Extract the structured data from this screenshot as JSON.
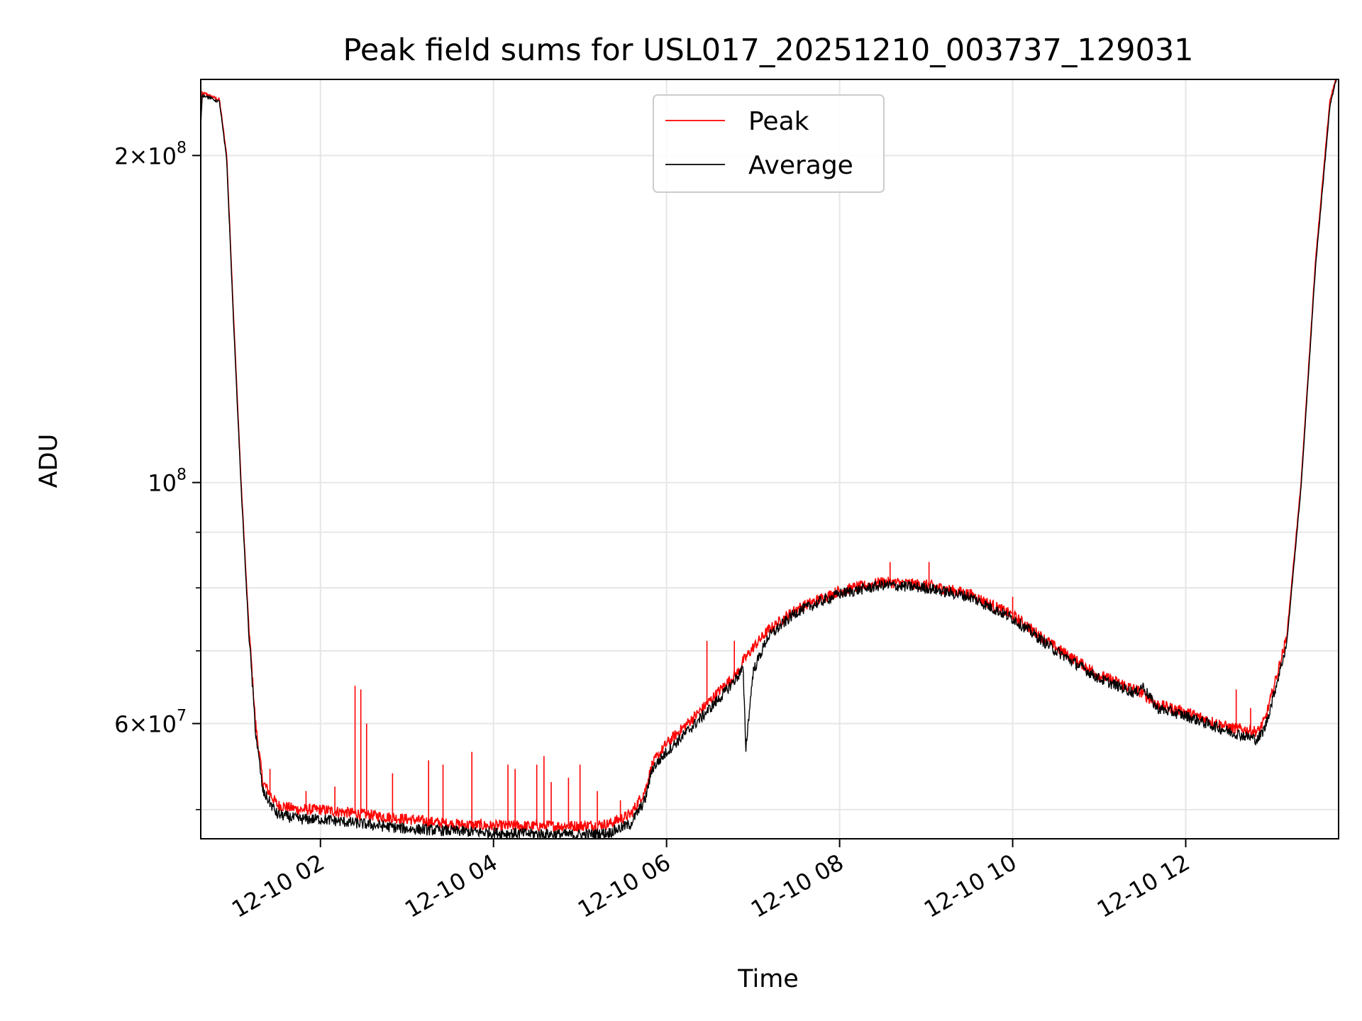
{
  "chart_data": {
    "type": "line",
    "title": "Peak field sums for USL017_20251210_003737_129031",
    "xlabel": "Time",
    "ylabel": "ADU",
    "x_ticks": [
      "12-10 02",
      "12-10 04",
      "12-10 06",
      "12-10 08",
      "12-10 10",
      "12-10 12"
    ],
    "x_range": [
      "2025-12-10 00:37",
      "2025-12-10 13:46"
    ],
    "y_scale": "log",
    "ylim": [
      47000000,
      235000000
    ],
    "y_ticks": [
      {
        "value": 60000000,
        "label_mantissa": "6",
        "label_base": "10",
        "label_exp": "7"
      },
      {
        "value": 100000000,
        "label_mantissa": "",
        "label_base": "10",
        "label_exp": "8"
      },
      {
        "value": 200000000,
        "label_mantissa": "2",
        "label_base": "10",
        "label_exp": "8"
      }
    ],
    "y_minor_ticks": [
      50000000,
      70000000,
      80000000,
      90000000
    ],
    "grid": true,
    "legend_position": "top-center",
    "series": [
      {
        "name": "Peak",
        "color": "#ff0000",
        "x": [
          "00:37",
          "00:38",
          "00:40",
          "00:50",
          "00:55",
          "01:00",
          "01:05",
          "01:10",
          "01:15",
          "01:20",
          "01:30",
          "01:45",
          "02:00",
          "02:30",
          "03:00",
          "03:30",
          "04:00",
          "04:30",
          "05:00",
          "05:20",
          "05:35",
          "05:45",
          "05:50",
          "06:00",
          "06:20",
          "06:40",
          "06:50",
          "06:53",
          "06:55",
          "07:00",
          "07:10",
          "07:30",
          "08:00",
          "08:30",
          "09:00",
          "09:30",
          "10:00",
          "10:30",
          "11:00",
          "11:25",
          "11:30",
          "11:40",
          "12:00",
          "12:30",
          "12:50",
          "12:55",
          "13:00",
          "13:10",
          "13:20",
          "13:30",
          "13:40",
          "13:46"
        ],
        "y": [
          215000000,
          228000000,
          228000000,
          225000000,
          200000000,
          140000000,
          100000000,
          75000000,
          60000000,
          53000000,
          50500000,
          50000000,
          50000000,
          49500000,
          49000000,
          48500000,
          48300000,
          48300000,
          48300000,
          48500000,
          49500000,
          52000000,
          55000000,
          57500000,
          61000000,
          65000000,
          67000000,
          68500000,
          69000000,
          70500000,
          73000000,
          76500000,
          79500000,
          81000000,
          80500000,
          79000000,
          75500000,
          70500000,
          66500000,
          64500000,
          64000000,
          62500000,
          61500000,
          59500000,
          59000000,
          60500000,
          64000000,
          72000000,
          100000000,
          160000000,
          225000000,
          240000000
        ],
        "spikes": [
          {
            "x": "01:25",
            "y": 54500000
          },
          {
            "x": "01:50",
            "y": 52000000
          },
          {
            "x": "02:10",
            "y": 52500000
          },
          {
            "x": "02:24",
            "y": 65000000
          },
          {
            "x": "02:28",
            "y": 64500000
          },
          {
            "x": "02:32",
            "y": 60000000
          },
          {
            "x": "02:50",
            "y": 54000000
          },
          {
            "x": "03:15",
            "y": 55500000
          },
          {
            "x": "03:25",
            "y": 55000000
          },
          {
            "x": "03:45",
            "y": 56500000
          },
          {
            "x": "04:10",
            "y": 55000000
          },
          {
            "x": "04:15",
            "y": 54500000
          },
          {
            "x": "04:30",
            "y": 55000000
          },
          {
            "x": "04:35",
            "y": 56000000
          },
          {
            "x": "04:40",
            "y": 53000000
          },
          {
            "x": "04:52",
            "y": 53500000
          },
          {
            "x": "05:00",
            "y": 55000000
          },
          {
            "x": "05:12",
            "y": 52000000
          },
          {
            "x": "05:28",
            "y": 51000000
          },
          {
            "x": "06:28",
            "y": 71500000
          },
          {
            "x": "06:47",
            "y": 71500000
          },
          {
            "x": "08:35",
            "y": 84500000
          },
          {
            "x": "09:02",
            "y": 84500000
          },
          {
            "x": "10:00",
            "y": 78500000
          },
          {
            "x": "12:35",
            "y": 64500000
          },
          {
            "x": "12:45",
            "y": 62000000
          }
        ]
      },
      {
        "name": "Average",
        "color": "#000000",
        "x": [
          "00:37",
          "00:38",
          "00:40",
          "00:50",
          "00:55",
          "01:00",
          "01:05",
          "01:10",
          "01:15",
          "01:20",
          "01:30",
          "01:45",
          "02:00",
          "02:30",
          "03:00",
          "03:30",
          "04:00",
          "04:30",
          "05:00",
          "05:20",
          "05:35",
          "05:45",
          "05:50",
          "06:00",
          "06:20",
          "06:40",
          "06:50",
          "06:53",
          "06:55",
          "07:00",
          "07:10",
          "07:30",
          "08:00",
          "08:30",
          "09:00",
          "09:30",
          "10:00",
          "10:30",
          "11:00",
          "11:25",
          "11:30",
          "11:40",
          "12:00",
          "12:30",
          "12:50",
          "12:55",
          "13:00",
          "13:10",
          "13:20",
          "13:30",
          "13:40",
          "13:46"
        ],
        "y": [
          213000000,
          227000000,
          227000000,
          224000000,
          198000000,
          138000000,
          99000000,
          74000000,
          59000000,
          52000000,
          49500000,
          49000000,
          49000000,
          48500000,
          48000000,
          47800000,
          47600000,
          47500000,
          47400000,
          47600000,
          48500000,
          51000000,
          54500000,
          56500000,
          60000000,
          64000000,
          66500000,
          67500000,
          57000000,
          67000000,
          72000000,
          76000000,
          79000000,
          80500000,
          80000000,
          78500000,
          75000000,
          70000000,
          66000000,
          64000000,
          65000000,
          62000000,
          61000000,
          59000000,
          58000000,
          59500000,
          63000000,
          71000000,
          99000000,
          158000000,
          222000000,
          240000000
        ]
      }
    ]
  }
}
